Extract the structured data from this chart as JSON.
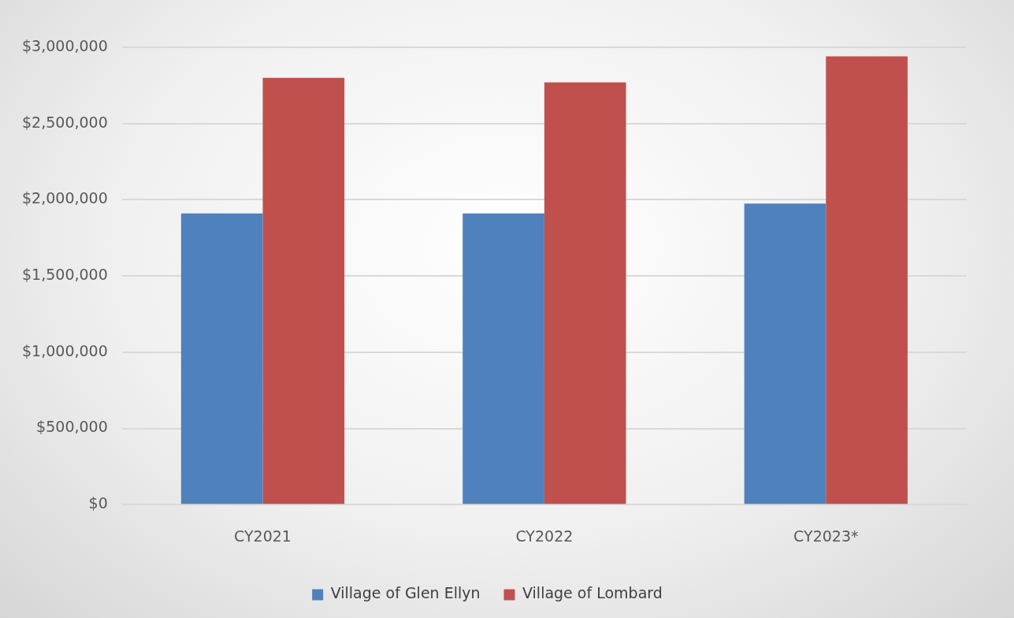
{
  "chart_data": {
    "type": "bar",
    "categories": [
      "CY2021",
      "CY2022",
      "CY2023*"
    ],
    "series": [
      {
        "name": "Village of Glen Ellyn",
        "color": "#4f81bd",
        "values": [
          1910000,
          1910000,
          1975000
        ]
      },
      {
        "name": "Village of Lombard",
        "color": "#c0504d",
        "values": [
          2800000,
          2770000,
          2940000
        ]
      }
    ],
    "ylim": [
      0,
      3000000
    ],
    "yticks": [
      {
        "value": 0,
        "label": "$0"
      },
      {
        "value": 500000,
        "label": "$500,000"
      },
      {
        "value": 1000000,
        "label": "$1,000,000"
      },
      {
        "value": 1500000,
        "label": "$1,500,000"
      },
      {
        "value": 2000000,
        "label": "$2,000,000"
      },
      {
        "value": 2500000,
        "label": "$2,500,000"
      },
      {
        "value": 3000000,
        "label": "$3,000,000"
      }
    ],
    "grid": "y",
    "legend": "bottom"
  }
}
